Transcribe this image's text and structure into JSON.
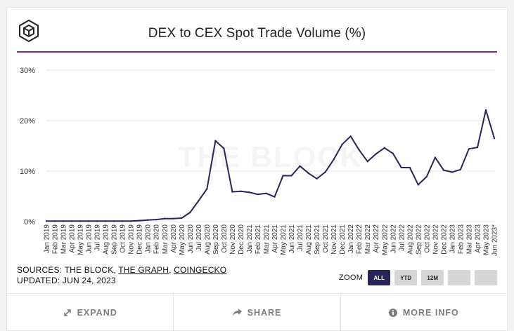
{
  "header": {
    "title": "DEX to CEX Spot Trade Volume (%)"
  },
  "chart_data": {
    "type": "line",
    "title": "DEX to CEX Spot Trade Volume (%)",
    "xlabel": "",
    "ylabel": "",
    "ylim": [
      0,
      30
    ],
    "yticks": [
      "0%",
      "10%",
      "20%",
      "30%"
    ],
    "grid": true,
    "watermark": "THE BLOCK",
    "categories": [
      "Jan 2019",
      "Feb 2019",
      "Mar 2019",
      "Apr 2019",
      "May 2019",
      "Jun 2019",
      "Jul 2019",
      "Aug 2019",
      "Sep 2019",
      "Oct 2019",
      "Nov 2019",
      "Dec 2019",
      "Jan 2020",
      "Feb 2020",
      "Mar 2020",
      "Apr 2020",
      "May 2020",
      "Jun 2020",
      "Jul 2020",
      "Aug 2020",
      "Sep 2020",
      "Oct 2020",
      "Nov 2020",
      "Dec 2020",
      "Jan 2021",
      "Feb 2021",
      "Mar 2021",
      "Apr 2021",
      "May 2021",
      "Jun 2021",
      "Jul 2021",
      "Aug 2021",
      "Sep 2021",
      "Oct 2021",
      "Nov 2021",
      "Dec 2021",
      "Jan 2022",
      "Feb 2022",
      "Mar 2022",
      "Apr 2022",
      "May 2022",
      "Jun 2022",
      "Jul 2022",
      "Aug 2022",
      "Sep 2022",
      "Oct 2022",
      "Nov 2022",
      "Dec 2022",
      "Jan 2023",
      "Feb 2023",
      "Mar 2023",
      "Apr 2023",
      "May 2023",
      "Jun 2023*"
    ],
    "series": [
      {
        "name": "DEX to CEX Spot Trade Volume (%)",
        "color": "#2a2558",
        "values": [
          0.1,
          0.1,
          0.1,
          0.1,
          0.1,
          0.1,
          0.1,
          0.1,
          0.1,
          0.1,
          0.1,
          0.2,
          0.3,
          0.4,
          0.6,
          0.6,
          0.7,
          1.8,
          4.1,
          6.5,
          16.0,
          14.5,
          5.9,
          6.0,
          5.8,
          5.4,
          5.6,
          4.9,
          9.1,
          9.1,
          11.0,
          9.6,
          8.5,
          9.8,
          12.3,
          15.3,
          16.9,
          14.2,
          11.9,
          13.4,
          14.6,
          13.5,
          10.7,
          10.7,
          7.3,
          8.9,
          12.7,
          10.2,
          9.8,
          10.3,
          14.4,
          14.7,
          22.1,
          16.5
        ]
      }
    ]
  },
  "sources": {
    "prefix": "SOURCES: THE BLOCK, ",
    "link1": "THE GRAPH",
    "sep": ", ",
    "link2": "COINGECKO",
    "updated": "UPDATED: JUN 24, 2023"
  },
  "zoom": {
    "label": "ZOOM",
    "buttons": [
      "ALL",
      "YTD",
      "12M",
      "",
      ""
    ],
    "active": "ALL"
  },
  "footer": {
    "expand": "EXPAND",
    "share": "SHARE",
    "more_info": "MORE INFO"
  }
}
